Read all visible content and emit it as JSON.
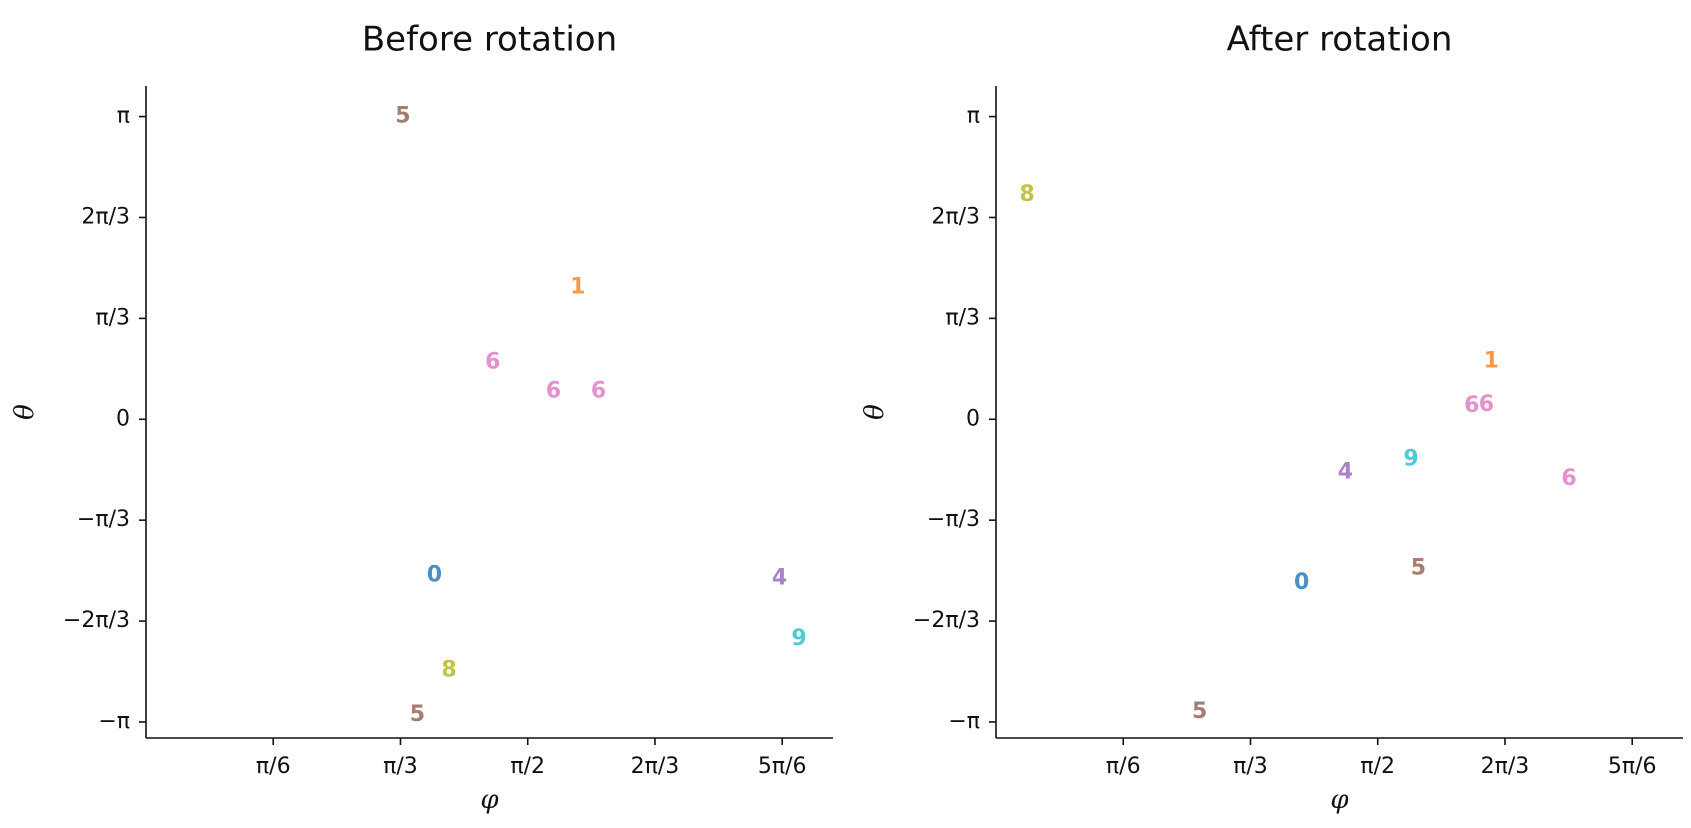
{
  "chart_data": [
    {
      "type": "scatter",
      "title": "Before rotation",
      "xlabel": "φ",
      "ylabel": "θ",
      "xlim": [
        0.0,
        2.827
      ],
      "ylim": [
        -3.308,
        3.459
      ],
      "xticks": [
        {
          "value": 0.5236,
          "label": "π/6"
        },
        {
          "value": 1.0472,
          "label": "π/3"
        },
        {
          "value": 1.5708,
          "label": "π/2"
        },
        {
          "value": 2.0944,
          "label": "2π/3"
        },
        {
          "value": 2.618,
          "label": "5π/6"
        }
      ],
      "yticks": [
        {
          "value": 3.1416,
          "label": "π"
        },
        {
          "value": 2.0944,
          "label": "2π/3"
        },
        {
          "value": 1.0472,
          "label": "π/3"
        },
        {
          "value": 0,
          "label": "0"
        },
        {
          "value": -1.0472,
          "label": "−π/3"
        },
        {
          "value": -2.0944,
          "label": "−2π/3"
        },
        {
          "value": -3.1416,
          "label": "−π"
        }
      ],
      "points": [
        {
          "label": "5",
          "x": 1.057,
          "y": 3.14,
          "color": "#a57c6e"
        },
        {
          "label": "1",
          "x": 1.777,
          "y": 1.37,
          "color": "#f59b47"
        },
        {
          "label": "6",
          "x": 1.427,
          "y": 0.59,
          "color": "#e590cf"
        },
        {
          "label": "6",
          "x": 1.677,
          "y": 0.29,
          "color": "#e590cf"
        },
        {
          "label": "6",
          "x": 1.862,
          "y": 0.29,
          "color": "#e590cf"
        },
        {
          "label": "0",
          "x": 1.187,
          "y": -1.62,
          "color": "#4a90c2"
        },
        {
          "label": "4",
          "x": 2.607,
          "y": -1.65,
          "color": "#a985c8"
        },
        {
          "label": "9",
          "x": 2.687,
          "y": -2.28,
          "color": "#4fcbd6"
        },
        {
          "label": "8",
          "x": 1.247,
          "y": -2.61,
          "color": "#c2c24b"
        },
        {
          "label": "5",
          "x": 1.117,
          "y": -3.07,
          "color": "#a57c6e"
        }
      ]
    },
    {
      "type": "scatter",
      "title": "After rotation",
      "xlabel": "φ",
      "ylabel": "θ",
      "xlim": [
        0.0,
        2.827
      ],
      "ylim": [
        -3.308,
        3.459
      ],
      "xticks": [
        {
          "value": 0.5236,
          "label": "π/6"
        },
        {
          "value": 1.0472,
          "label": "π/3"
        },
        {
          "value": 1.5708,
          "label": "π/2"
        },
        {
          "value": 2.0944,
          "label": "2π/3"
        },
        {
          "value": 2.618,
          "label": "5π/6"
        }
      ],
      "yticks": [
        {
          "value": 3.1416,
          "label": "π"
        },
        {
          "value": 2.0944,
          "label": "2π/3"
        },
        {
          "value": 1.0472,
          "label": "π/3"
        },
        {
          "value": 0,
          "label": "0"
        },
        {
          "value": -1.0472,
          "label": "−π/3"
        },
        {
          "value": -2.0944,
          "label": "−2π/3"
        },
        {
          "value": -3.1416,
          "label": "−π"
        }
      ],
      "points": [
        {
          "label": "8",
          "x": 0.128,
          "y": 2.33,
          "color": "#c2c24b"
        },
        {
          "label": "1",
          "x": 2.038,
          "y": 0.6,
          "color": "#f59b47"
        },
        {
          "label": "6",
          "x": 1.958,
          "y": 0.14,
          "color": "#e590cf"
        },
        {
          "label": "6",
          "x": 2.018,
          "y": 0.15,
          "color": "#e590cf"
        },
        {
          "label": "9",
          "x": 1.708,
          "y": -0.42,
          "color": "#4fcbd6"
        },
        {
          "label": "4",
          "x": 1.438,
          "y": -0.55,
          "color": "#a985c8"
        },
        {
          "label": "6",
          "x": 2.358,
          "y": -0.62,
          "color": "#e590cf"
        },
        {
          "label": "5",
          "x": 1.738,
          "y": -1.55,
          "color": "#a57c6e"
        },
        {
          "label": "0",
          "x": 1.258,
          "y": -1.7,
          "color": "#4a90c2"
        },
        {
          "label": "5",
          "x": 0.838,
          "y": -3.04,
          "color": "#a57c6e"
        }
      ]
    }
  ]
}
